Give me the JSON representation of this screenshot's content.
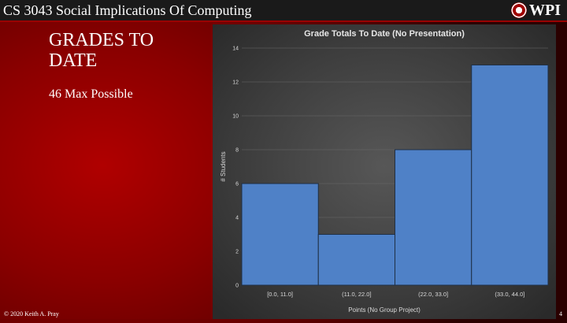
{
  "header": {
    "course_title": "CS 3043 Social Implications Of Computing",
    "logo_text": "WPI"
  },
  "slide": {
    "title": "GRADES TO DATE",
    "subtext": "46 Max Possible"
  },
  "footer": {
    "copyright": "© 2020 Keith A. Pray",
    "page_number": "4"
  },
  "colors": {
    "bar_fill": "#4f81c7",
    "bar_stroke": "#1f2f45",
    "slide_red": "#a00000"
  },
  "chart_data": {
    "type": "bar",
    "title": "Grade Totals To Date (No Presentation)",
    "xlabel": "Points (No Group Project)",
    "ylabel": "# Students",
    "categories": [
      "[0.0, 11.0]",
      "(11.0, 22.0]",
      "(22.0, 33.0]",
      "(33.0, 44.0]"
    ],
    "values": [
      6,
      3,
      8,
      13
    ],
    "ylim": [
      0,
      14
    ],
    "yticks": [
      "0",
      "2",
      "4",
      "6",
      "8",
      "10",
      "12",
      "14"
    ],
    "grid": true,
    "legend": "none"
  }
}
